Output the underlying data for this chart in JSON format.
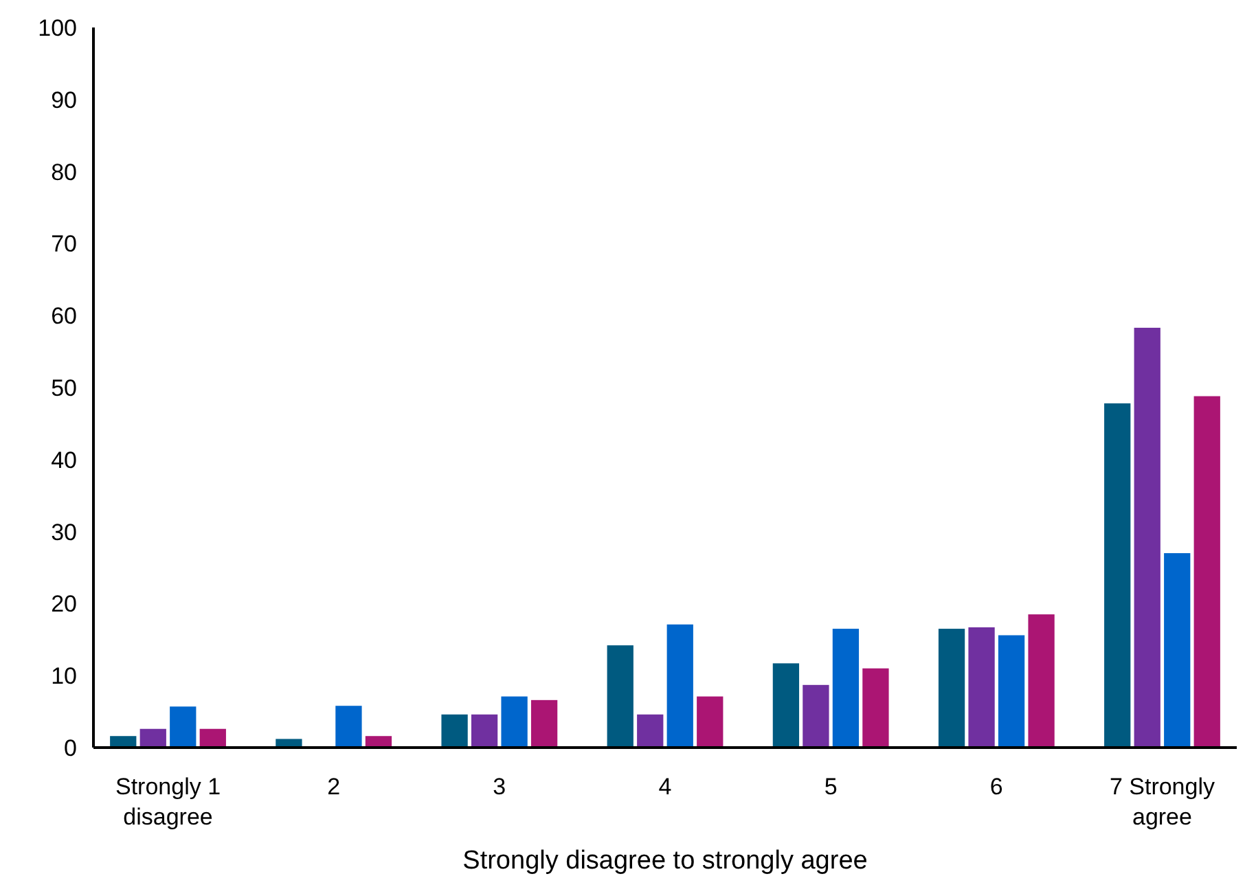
{
  "chart_data": {
    "type": "bar",
    "xlabel": "Strongly disagree to strongly agree",
    "categories": [
      "Strongly 1\ndisagree",
      "2",
      "3",
      "4",
      "5",
      "6",
      "7 Strongly\nagree"
    ],
    "series": [
      {
        "color": "#005a80",
        "values": [
          1.6,
          1.2,
          4.6,
          14.2,
          11.7,
          16.5,
          47.8
        ]
      },
      {
        "color": "#7030a0",
        "values": [
          2.6,
          0,
          4.6,
          4.6,
          8.7,
          16.7,
          58.3
        ]
      },
      {
        "color": "#0066cc",
        "values": [
          5.7,
          5.8,
          7.1,
          17.1,
          16.5,
          15.6,
          27.0
        ]
      },
      {
        "color": "#ab1573",
        "values": [
          2.6,
          1.6,
          6.6,
          7.1,
          11.0,
          18.5,
          48.8
        ]
      }
    ],
    "ylim": [
      0,
      100
    ],
    "yticks": [
      0,
      10,
      20,
      30,
      40,
      50,
      60,
      70,
      80,
      90,
      100
    ],
    "grid": false
  }
}
